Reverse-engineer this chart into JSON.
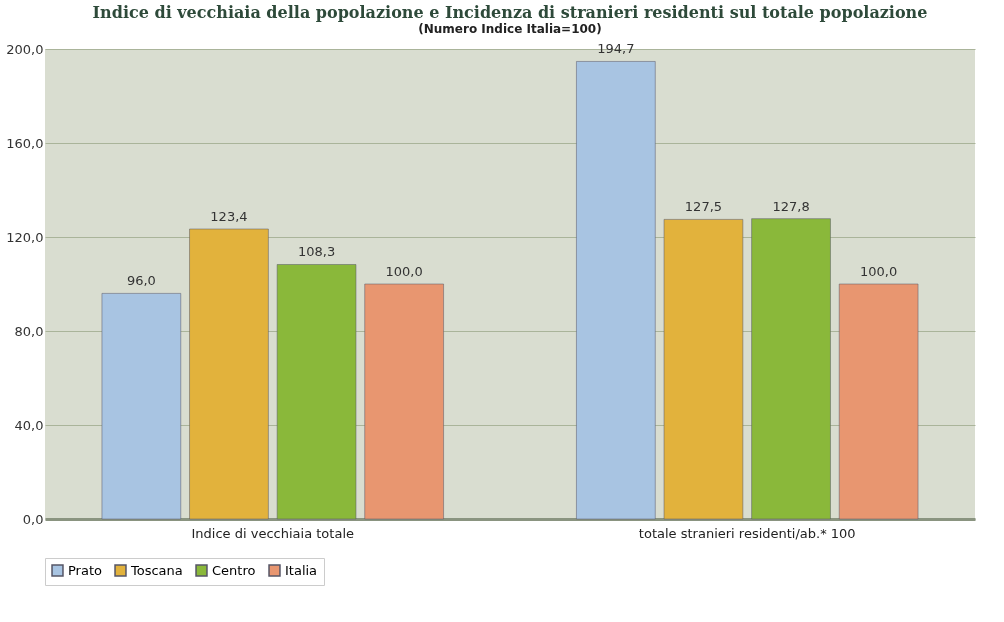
{
  "chart_data": {
    "type": "bar",
    "title": "Indice di vecchiaia della popolazione e Incidenza di stranieri residenti sul totale popolazione",
    "subtitle": "(Numero Indice Italia=100)",
    "categories": [
      "Indice di vecchiaia totale",
      "totale stranieri residenti/ab.* 100"
    ],
    "series": [
      {
        "name": "Prato",
        "color": "#a8c4e2",
        "values": [
          96.0,
          194.7
        ],
        "value_labels": [
          "96,0",
          "194,7"
        ]
      },
      {
        "name": "Toscana",
        "color": "#e2b23c",
        "values": [
          123.4,
          127.5
        ],
        "value_labels": [
          "123,4",
          "127,5"
        ]
      },
      {
        "name": "Centro",
        "color": "#8ab83a",
        "values": [
          108.3,
          127.8
        ],
        "value_labels": [
          "108,3",
          "127,8"
        ]
      },
      {
        "name": "Italia",
        "color": "#e89670",
        "values": [
          100.0,
          100.0
        ],
        "value_labels": [
          "100,0",
          "100,0"
        ]
      }
    ],
    "ylim": [
      0,
      200
    ],
    "yticks": [
      {
        "value": 0,
        "label": "0,0"
      },
      {
        "value": 40,
        "label": "40,0"
      },
      {
        "value": 80,
        "label": "80,0"
      },
      {
        "value": 120,
        "label": "120,0"
      },
      {
        "value": 160,
        "label": "160,0"
      },
      {
        "value": 200,
        "label": "200,0"
      }
    ],
    "grid": "y",
    "legend": "bottom"
  }
}
